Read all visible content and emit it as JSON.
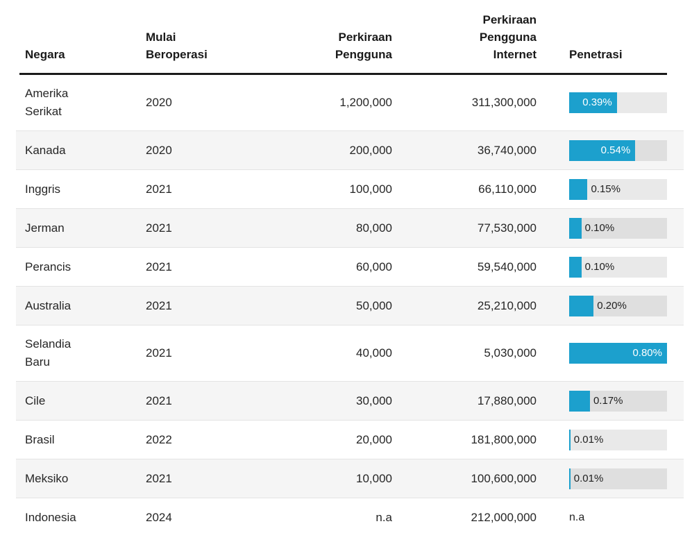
{
  "header": {
    "columns": [
      {
        "id": "negara",
        "label": "Negara"
      },
      {
        "id": "mulai_beroperasi",
        "label": "Mulai\nBeroperasi"
      },
      {
        "id": "perkiraan_pengguna",
        "label": "Perkiraan\nPengguna"
      },
      {
        "id": "perkiraan_pengguna_internet",
        "label": "Perkiraan\nPengguna\nInternet"
      },
      {
        "id": "penetrasi",
        "label": "Penetrasi"
      }
    ]
  },
  "bar": {
    "max_percent": 0.8,
    "fill_color": "#1CA0CD",
    "track_color": "#E9E9E9",
    "inside_label_color": "#FFFFFF",
    "outside_label_color": "#1F1F1F"
  },
  "colors": {
    "row_stripe": "#F5F5F5",
    "row_separator": "#E3E3E3",
    "header_rule": "#1A1A1A",
    "text": "#262626"
  },
  "rows": [
    {
      "negara": "Amerika Serikat",
      "mulai_beroperasi": "2020",
      "perkiraan_pengguna": "1,200,000",
      "perkiraan_pengguna_internet": "311,300,000",
      "penetrasi_label": "0.39%",
      "penetrasi_value": 0.39,
      "label_inside": true,
      "striped": false
    },
    {
      "negara": "Kanada",
      "mulai_beroperasi": "2020",
      "perkiraan_pengguna": "200,000",
      "perkiraan_pengguna_internet": "36,740,000",
      "penetrasi_label": "0.54%",
      "penetrasi_value": 0.54,
      "label_inside": true,
      "striped": true
    },
    {
      "negara": "Inggris",
      "mulai_beroperasi": "2021",
      "perkiraan_pengguna": "100,000",
      "perkiraan_pengguna_internet": "66,110,000",
      "penetrasi_label": "0.15%",
      "penetrasi_value": 0.15,
      "label_inside": false,
      "striped": false
    },
    {
      "negara": "Jerman",
      "mulai_beroperasi": "2021",
      "perkiraan_pengguna": "80,000",
      "perkiraan_pengguna_internet": "77,530,000",
      "penetrasi_label": "0.10%",
      "penetrasi_value": 0.1,
      "label_inside": false,
      "striped": true
    },
    {
      "negara": "Perancis",
      "mulai_beroperasi": "2021",
      "perkiraan_pengguna": "60,000",
      "perkiraan_pengguna_internet": "59,540,000",
      "penetrasi_label": "0.10%",
      "penetrasi_value": 0.1,
      "label_inside": false,
      "striped": false
    },
    {
      "negara": "Australia",
      "mulai_beroperasi": "2021",
      "perkiraan_pengguna": "50,000",
      "perkiraan_pengguna_internet": "25,210,000",
      "penetrasi_label": "0.20%",
      "penetrasi_value": 0.2,
      "label_inside": false,
      "striped": true
    },
    {
      "negara": "Selandia Baru",
      "mulai_beroperasi": "2021",
      "perkiraan_pengguna": "40,000",
      "perkiraan_pengguna_internet": "5,030,000",
      "penetrasi_label": "0.80%",
      "penetrasi_value": 0.8,
      "label_inside": true,
      "striped": false
    },
    {
      "negara": "Cile",
      "mulai_beroperasi": "2021",
      "perkiraan_pengguna": "30,000",
      "perkiraan_pengguna_internet": "17,880,000",
      "penetrasi_label": "0.17%",
      "penetrasi_value": 0.17,
      "label_inside": false,
      "striped": true
    },
    {
      "negara": "Brasil",
      "mulai_beroperasi": "2022",
      "perkiraan_pengguna": "20,000",
      "perkiraan_pengguna_internet": "181,800,000",
      "penetrasi_label": "0.01%",
      "penetrasi_value": 0.01,
      "label_inside": false,
      "striped": false
    },
    {
      "negara": "Meksiko",
      "mulai_beroperasi": "2021",
      "perkiraan_pengguna": "10,000",
      "perkiraan_pengguna_internet": "100,600,000",
      "penetrasi_label": "0.01%",
      "penetrasi_value": 0.01,
      "label_inside": false,
      "striped": true
    },
    {
      "negara": "Indonesia",
      "mulai_beroperasi": "2024",
      "perkiraan_pengguna": "n.a",
      "perkiraan_pengguna_internet": "212,000,000",
      "penetrasi_label": "n.a",
      "penetrasi_value": null,
      "label_inside": false,
      "striped": false
    }
  ],
  "chart_data": {
    "type": "table",
    "columns": [
      "Negara",
      "Mulai Beroperasi",
      "Perkiraan Pengguna",
      "Perkiraan Pengguna Internet",
      "Penetrasi"
    ],
    "rows": [
      [
        "Amerika Serikat",
        "2020",
        "1,200,000",
        "311,300,000",
        "0.39%"
      ],
      [
        "Kanada",
        "2020",
        "200,000",
        "36,740,000",
        "0.54%"
      ],
      [
        "Inggris",
        "2021",
        "100,000",
        "66,110,000",
        "0.15%"
      ],
      [
        "Jerman",
        "2021",
        "80,000",
        "77,530,000",
        "0.10%"
      ],
      [
        "Perancis",
        "2021",
        "60,000",
        "59,540,000",
        "0.10%"
      ],
      [
        "Australia",
        "2021",
        "50,000",
        "25,210,000",
        "0.20%"
      ],
      [
        "Selandia Baru",
        "2021",
        "40,000",
        "5,030,000",
        "0.80%"
      ],
      [
        "Cile",
        "2021",
        "30,000",
        "17,880,000",
        "0.17%"
      ],
      [
        "Brasil",
        "2022",
        "20,000",
        "181,800,000",
        "0.01%"
      ],
      [
        "Meksiko",
        "2021",
        "10,000",
        "100,600,000",
        "0.01%"
      ],
      [
        "Indonesia",
        "2024",
        "n.a",
        "212,000,000",
        "n.a"
      ]
    ],
    "bar_column": "Penetrasi",
    "bar_values_percent": [
      0.39,
      0.54,
      0.15,
      0.1,
      0.1,
      0.2,
      0.8,
      0.17,
      0.01,
      0.01,
      null
    ],
    "bar_axis_max_percent": 0.8,
    "layout": "striped data table with inline horizontal bar chart in last column"
  }
}
